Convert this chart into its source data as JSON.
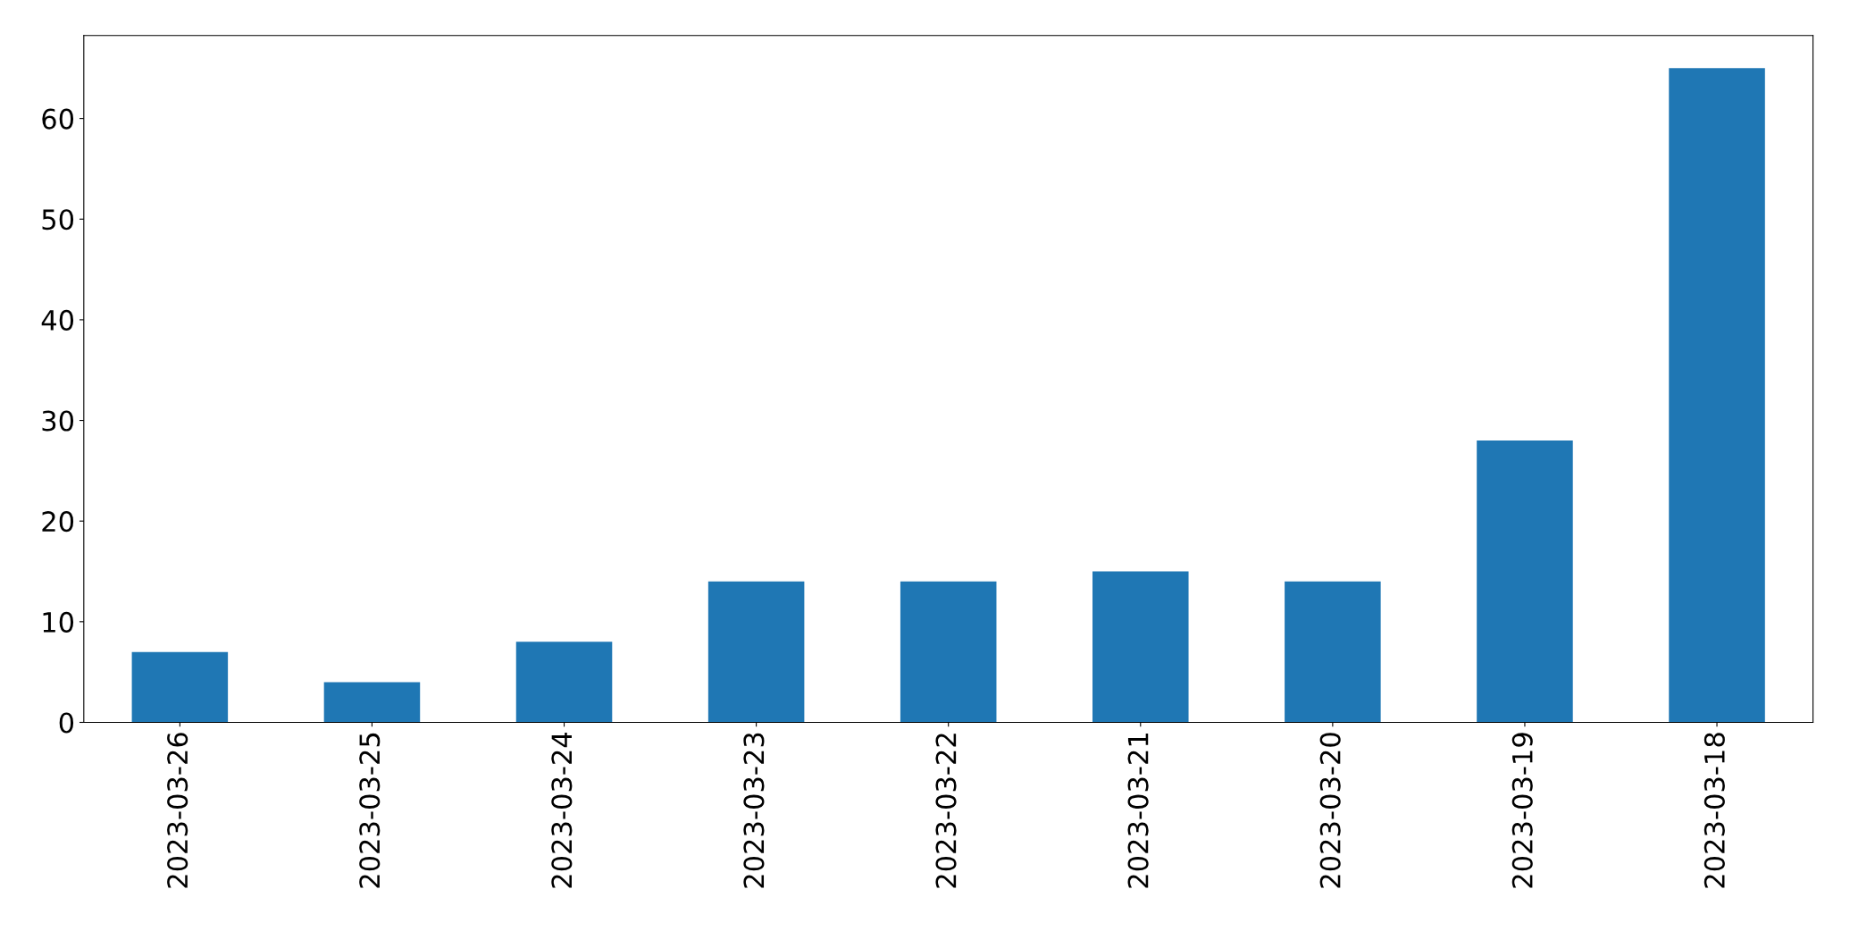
{
  "chart_data": {
    "type": "bar",
    "categories": [
      "2023-03-26",
      "2023-03-25",
      "2023-03-24",
      "2023-03-23",
      "2023-03-22",
      "2023-03-21",
      "2023-03-20",
      "2023-03-19",
      "2023-03-18"
    ],
    "values": [
      7,
      4,
      8,
      14,
      14,
      15,
      14,
      28,
      65
    ],
    "color": "#1f77b4",
    "ylim": [
      0,
      68.25
    ],
    "yticks": [
      0,
      10,
      20,
      30,
      40,
      50,
      60
    ],
    "grid": false,
    "legend": false
  }
}
